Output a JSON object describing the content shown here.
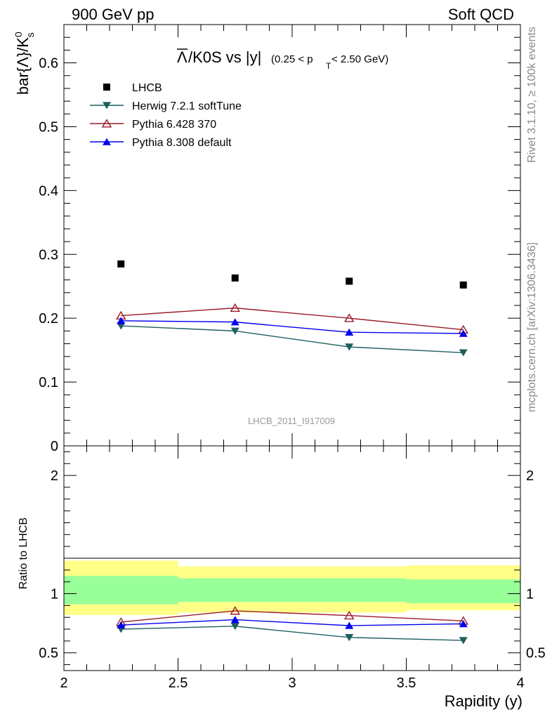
{
  "header": {
    "left": "900 GeV pp",
    "right": "Soft QCD"
  },
  "side_text": {
    "top": "Rivet 3.1.10, ≥ 100k events",
    "bottom": "mcplots.cern.ch [arXiv:1306.3436]"
  },
  "chart_data": [
    {
      "type": "line",
      "title": "Λ̅/K0S vs |y| (0.25 < pT < 2.50 GeV)",
      "title_main": "/K0S vs |y|",
      "title_bar_symbol": "Λ",
      "title_sub": "(0.25 < p",
      "title_sub_T": "T",
      "title_sub_end": " < 2.50 GeV)",
      "ylabel": "bar{Λ}/K",
      "ylabel_sup": "0",
      "ylabel_sub": "s",
      "watermark": "LHCB_2011_I917009",
      "xlim": [
        2,
        4
      ],
      "ylim": [
        0,
        0.66
      ],
      "yticks": [
        "0",
        "0.1",
        "0.2",
        "0.3",
        "0.4",
        "0.5",
        "0.6"
      ],
      "x": [
        2.25,
        2.75,
        3.25,
        3.75
      ],
      "series": [
        {
          "name": "LHCB",
          "values": [
            0.285,
            0.263,
            0.258,
            0.252
          ],
          "color": "#000000",
          "marker": "square",
          "line": false
        },
        {
          "name": "Herwig 7.2.1 softTune",
          "values": [
            0.188,
            0.18,
            0.155,
            0.146
          ],
          "color": "#1f5f5f",
          "marker": "triangle-down",
          "line": true
        },
        {
          "name": "Pythia 6.428 370",
          "values": [
            0.204,
            0.216,
            0.2,
            0.182
          ],
          "color": "#9b1b2c",
          "marker": "triangle-up-open",
          "line": true
        },
        {
          "name": "Pythia 8.308 default",
          "values": [
            0.196,
            0.194,
            0.178,
            0.176
          ],
          "color": "#0000ee",
          "marker": "triangle-up",
          "line": true
        }
      ]
    },
    {
      "type": "line",
      "ylabel": "Ratio to LHCB",
      "xlabel": "Rapidity (y)",
      "xlim": [
        2,
        4
      ],
      "ylim": [
        0.35,
        2.25
      ],
      "yticks": [
        "0.5",
        "1",
        "2"
      ],
      "xticks": [
        "2",
        "2.5",
        "3",
        "3.5",
        "4"
      ],
      "x": [
        2.25,
        2.75,
        3.25,
        3.75
      ],
      "bands": {
        "bins": [
          [
            2,
            2.5
          ],
          [
            2.5,
            3
          ],
          [
            3,
            3.5
          ],
          [
            3.5,
            4
          ]
        ],
        "yellow": [
          [
            0.82,
            1.28
          ],
          [
            0.84,
            1.23
          ],
          [
            0.84,
            1.23
          ],
          [
            0.86,
            1.24
          ]
        ],
        "green": [
          [
            0.91,
            1.15
          ],
          [
            0.93,
            1.13
          ],
          [
            0.93,
            1.13
          ],
          [
            0.92,
            1.12
          ]
        ],
        "yellow_color": "#ffff88",
        "green_color": "#99ff99"
      },
      "series": [
        {
          "name": "Herwig 7.2.1 softTune",
          "values": [
            0.7,
            0.725,
            0.63,
            0.605
          ],
          "color": "#1f5f5f",
          "marker": "triangle-down"
        },
        {
          "name": "Pythia 6.428 370",
          "values": [
            0.76,
            0.855,
            0.815,
            0.77
          ],
          "color": "#9b1b2c",
          "marker": "triangle-up-open"
        },
        {
          "name": "Pythia 8.308 default",
          "values": [
            0.735,
            0.78,
            0.73,
            0.745
          ],
          "color": "#0000ee",
          "marker": "triangle-up"
        }
      ]
    }
  ]
}
